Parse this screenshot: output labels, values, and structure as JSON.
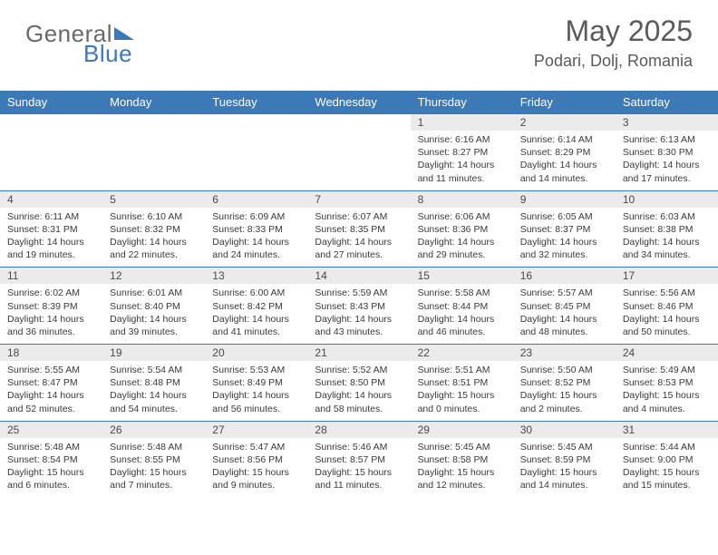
{
  "brand": {
    "word1": "General",
    "word2": "Blue"
  },
  "title": "May 2025",
  "location": "Podari, Dolj, Romania",
  "colors": {
    "accent": "#3b79b7",
    "header_bg": "#3b79b7",
    "daynum_bg": "#ebebeb",
    "text": "#3a3a3a"
  },
  "days_of_week": [
    "Sunday",
    "Monday",
    "Tuesday",
    "Wednesday",
    "Thursday",
    "Friday",
    "Saturday"
  ],
  "weeks": [
    [
      null,
      null,
      null,
      null,
      {
        "n": "1",
        "sr": "6:16 AM",
        "ss": "8:27 PM",
        "dl": "14 hours and 11 minutes."
      },
      {
        "n": "2",
        "sr": "6:14 AM",
        "ss": "8:29 PM",
        "dl": "14 hours and 14 minutes."
      },
      {
        "n": "3",
        "sr": "6:13 AM",
        "ss": "8:30 PM",
        "dl": "14 hours and 17 minutes."
      }
    ],
    [
      {
        "n": "4",
        "sr": "6:11 AM",
        "ss": "8:31 PM",
        "dl": "14 hours and 19 minutes."
      },
      {
        "n": "5",
        "sr": "6:10 AM",
        "ss": "8:32 PM",
        "dl": "14 hours and 22 minutes."
      },
      {
        "n": "6",
        "sr": "6:09 AM",
        "ss": "8:33 PM",
        "dl": "14 hours and 24 minutes."
      },
      {
        "n": "7",
        "sr": "6:07 AM",
        "ss": "8:35 PM",
        "dl": "14 hours and 27 minutes."
      },
      {
        "n": "8",
        "sr": "6:06 AM",
        "ss": "8:36 PM",
        "dl": "14 hours and 29 minutes."
      },
      {
        "n": "9",
        "sr": "6:05 AM",
        "ss": "8:37 PM",
        "dl": "14 hours and 32 minutes."
      },
      {
        "n": "10",
        "sr": "6:03 AM",
        "ss": "8:38 PM",
        "dl": "14 hours and 34 minutes."
      }
    ],
    [
      {
        "n": "11",
        "sr": "6:02 AM",
        "ss": "8:39 PM",
        "dl": "14 hours and 36 minutes."
      },
      {
        "n": "12",
        "sr": "6:01 AM",
        "ss": "8:40 PM",
        "dl": "14 hours and 39 minutes."
      },
      {
        "n": "13",
        "sr": "6:00 AM",
        "ss": "8:42 PM",
        "dl": "14 hours and 41 minutes."
      },
      {
        "n": "14",
        "sr": "5:59 AM",
        "ss": "8:43 PM",
        "dl": "14 hours and 43 minutes."
      },
      {
        "n": "15",
        "sr": "5:58 AM",
        "ss": "8:44 PM",
        "dl": "14 hours and 46 minutes."
      },
      {
        "n": "16",
        "sr": "5:57 AM",
        "ss": "8:45 PM",
        "dl": "14 hours and 48 minutes."
      },
      {
        "n": "17",
        "sr": "5:56 AM",
        "ss": "8:46 PM",
        "dl": "14 hours and 50 minutes."
      }
    ],
    [
      {
        "n": "18",
        "sr": "5:55 AM",
        "ss": "8:47 PM",
        "dl": "14 hours and 52 minutes."
      },
      {
        "n": "19",
        "sr": "5:54 AM",
        "ss": "8:48 PM",
        "dl": "14 hours and 54 minutes."
      },
      {
        "n": "20",
        "sr": "5:53 AM",
        "ss": "8:49 PM",
        "dl": "14 hours and 56 minutes."
      },
      {
        "n": "21",
        "sr": "5:52 AM",
        "ss": "8:50 PM",
        "dl": "14 hours and 58 minutes."
      },
      {
        "n": "22",
        "sr": "5:51 AM",
        "ss": "8:51 PM",
        "dl": "15 hours and 0 minutes."
      },
      {
        "n": "23",
        "sr": "5:50 AM",
        "ss": "8:52 PM",
        "dl": "15 hours and 2 minutes."
      },
      {
        "n": "24",
        "sr": "5:49 AM",
        "ss": "8:53 PM",
        "dl": "15 hours and 4 minutes."
      }
    ],
    [
      {
        "n": "25",
        "sr": "5:48 AM",
        "ss": "8:54 PM",
        "dl": "15 hours and 6 minutes."
      },
      {
        "n": "26",
        "sr": "5:48 AM",
        "ss": "8:55 PM",
        "dl": "15 hours and 7 minutes."
      },
      {
        "n": "27",
        "sr": "5:47 AM",
        "ss": "8:56 PM",
        "dl": "15 hours and 9 minutes."
      },
      {
        "n": "28",
        "sr": "5:46 AM",
        "ss": "8:57 PM",
        "dl": "15 hours and 11 minutes."
      },
      {
        "n": "29",
        "sr": "5:45 AM",
        "ss": "8:58 PM",
        "dl": "15 hours and 12 minutes."
      },
      {
        "n": "30",
        "sr": "5:45 AM",
        "ss": "8:59 PM",
        "dl": "15 hours and 14 minutes."
      },
      {
        "n": "31",
        "sr": "5:44 AM",
        "ss": "9:00 PM",
        "dl": "15 hours and 15 minutes."
      }
    ]
  ],
  "labels": {
    "sunrise": "Sunrise:",
    "sunset": "Sunset:",
    "daylight": "Daylight:"
  }
}
